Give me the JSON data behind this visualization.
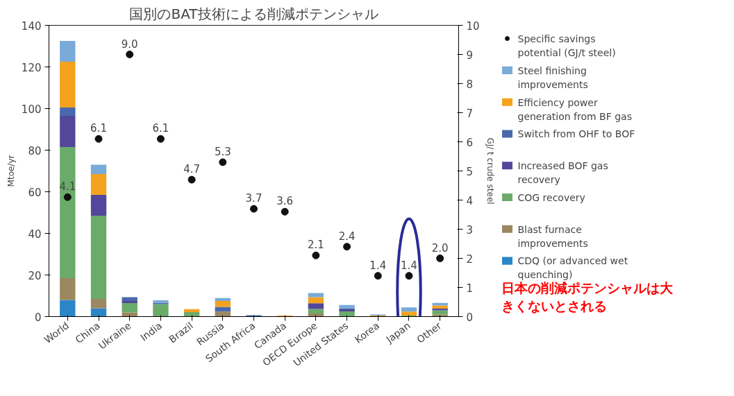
{
  "chart_data": {
    "type": "bar",
    "title": "国別のBAT技術による削減ポテンシャル",
    "ylabel": "Mtoe/yr",
    "y2label": "GJ/ t crude steel",
    "categories": [
      "World",
      "China",
      "Ukraine",
      "India",
      "Brazil",
      "Russia",
      "South Africa",
      "Canada",
      "OECD Europe",
      "United States",
      "Korea",
      "Japan",
      "Other"
    ],
    "stacked": true,
    "ylim": [
      0,
      140
    ],
    "yticks": [
      0,
      20,
      40,
      60,
      80,
      100,
      120,
      140
    ],
    "y2lim": [
      0,
      10
    ],
    "y2ticks": [
      0,
      1,
      2,
      3,
      4,
      5,
      6,
      7,
      8,
      9,
      10
    ],
    "series": [
      {
        "name": "CDQ (or advanced wet quenching)",
        "color": "#2b86c8",
        "type": "bar",
        "values": [
          8,
          4,
          0,
          0,
          0,
          0,
          0,
          0,
          0,
          0,
          0,
          0,
          0
        ]
      },
      {
        "name": "Blast furnace improvements",
        "color": "#9c8860",
        "type": "bar",
        "values": [
          10.5,
          4.5,
          2,
          0,
          0,
          2.4,
          0,
          0,
          1.5,
          0,
          0,
          0,
          1
        ]
      },
      {
        "name": "COG recovery",
        "color": "#6aab6a",
        "type": "bar",
        "values": [
          63,
          40,
          4.5,
          6,
          2.2,
          0,
          0,
          0,
          2.2,
          2.5,
          0,
          0.5,
          2
        ]
      },
      {
        "name": "Increased BOF gas recovery",
        "color": "#52479a",
        "type": "bar",
        "values": [
          15,
          10,
          1,
          0,
          0,
          0,
          0,
          0,
          2.7,
          1,
          0,
          0,
          0.8
        ]
      },
      {
        "name": "Switch from OHF to BOF",
        "color": "#4a68ad",
        "type": "bar",
        "values": [
          4,
          0,
          1.8,
          0.6,
          0,
          2.3,
          0.7,
          0,
          0,
          0.5,
          0,
          0,
          0
        ]
      },
      {
        "name": "Efficiency power generation from BF gas",
        "color": "#f5a21e",
        "type": "bar",
        "values": [
          22,
          10,
          0,
          0,
          1.4,
          2.8,
          0,
          0.5,
          2.9,
          0,
          0.5,
          1.9,
          1.5
        ]
      },
      {
        "name": "Steel finishing improvements",
        "color": "#7aaad8",
        "type": "bar",
        "values": [
          10,
          4.5,
          0,
          1.2,
          0,
          1.4,
          0,
          0,
          2,
          1.6,
          0.5,
          2,
          1.3
        ]
      },
      {
        "name": "Specific savings potential (GJ/t steel)",
        "color": "#111111",
        "type": "scatter",
        "axis": "y2",
        "marker": "circle",
        "values": [
          4.1,
          6.1,
          9.0,
          6.1,
          4.7,
          5.3,
          3.7,
          3.6,
          2.1,
          2.4,
          1.4,
          1.4,
          2.0
        ],
        "value_labels": [
          "4.1",
          "6.1",
          "9.0",
          "6.1",
          "4.7",
          "5.3",
          "3.7",
          "3.6",
          "2.1",
          "2.4",
          "1.4",
          "1.4",
          "2.0"
        ]
      }
    ],
    "legend": "right",
    "grid": false,
    "annotations": [
      "日本の削減ポテンシャルは大きくないとされる"
    ]
  }
}
